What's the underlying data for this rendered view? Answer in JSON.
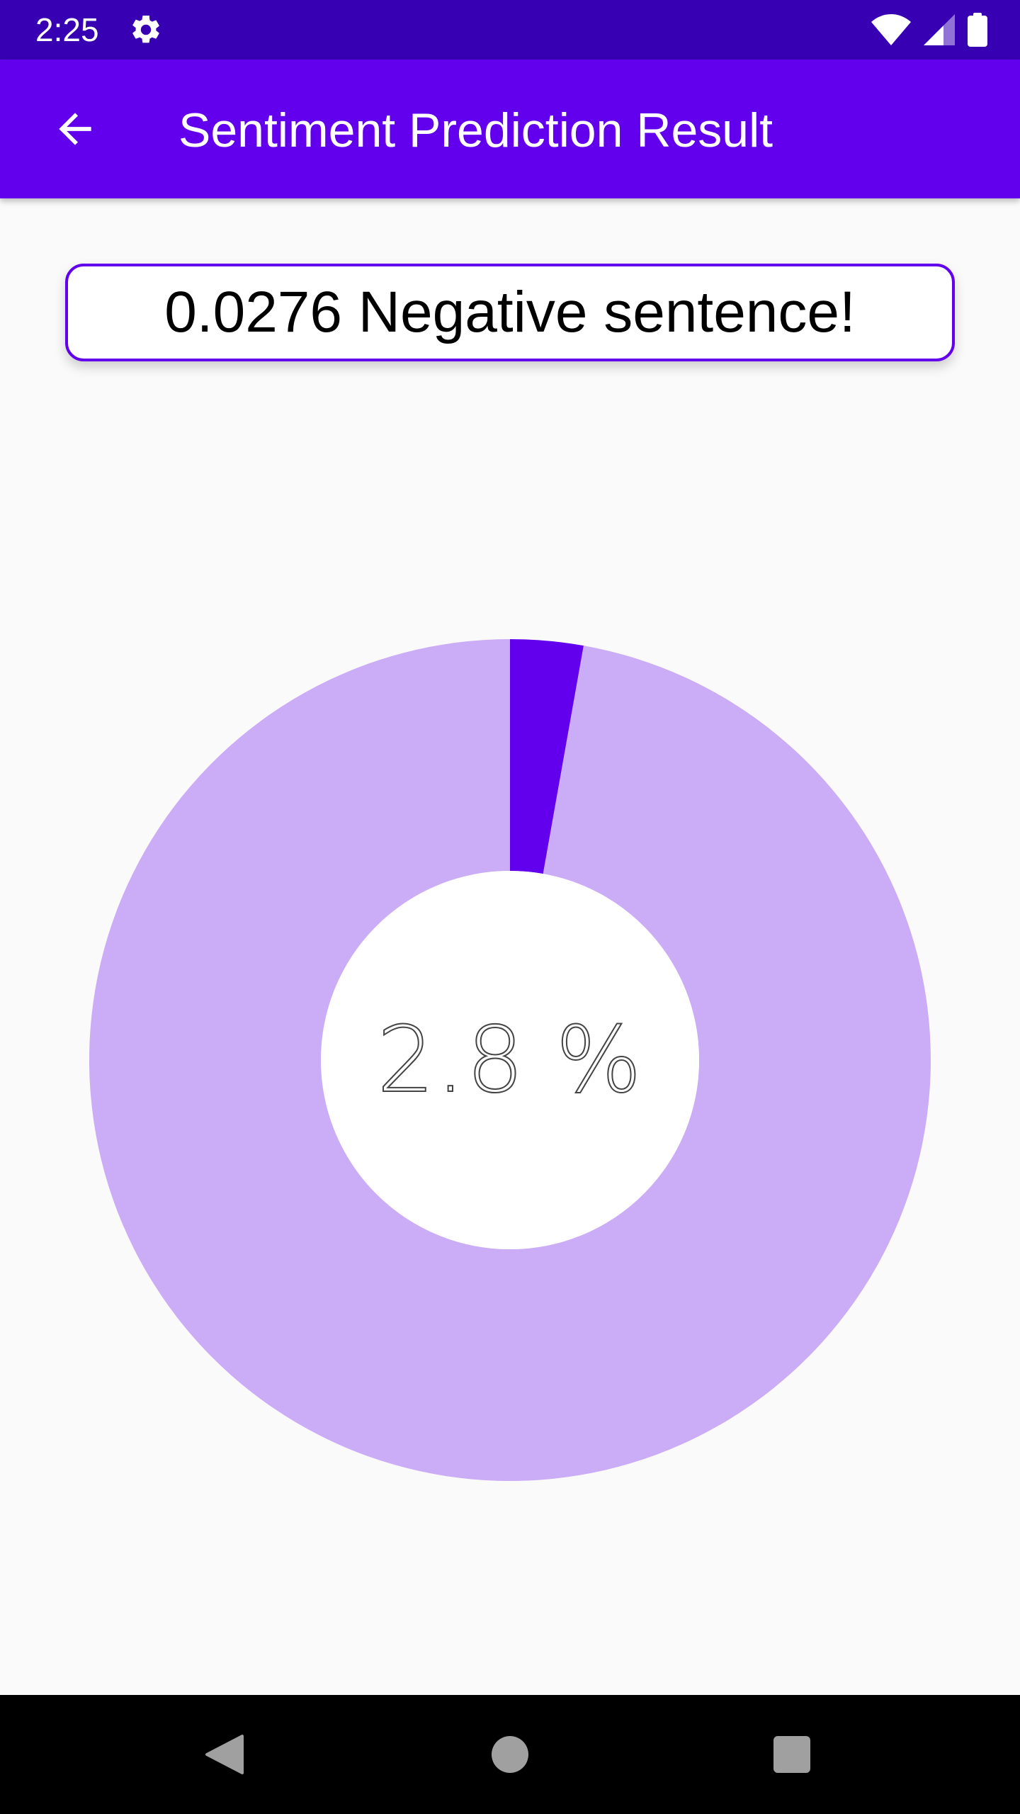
{
  "status_bar": {
    "time": "2:25",
    "icons": [
      "gear-icon",
      "wifi-icon",
      "signal-icon",
      "battery-icon"
    ]
  },
  "app_bar": {
    "back_icon": "arrow-back-icon",
    "title": "Sentiment Prediction Result"
  },
  "result": {
    "text": "0.0276  Negative sentence!"
  },
  "chart_data": {
    "type": "pie",
    "donut": true,
    "slices": [
      {
        "value": 2.8,
        "color": "#6200ee"
      },
      {
        "value": 97.2,
        "color": "#cbacf6"
      }
    ],
    "center_label": "2.8 %"
  },
  "colors": {
    "primary": "#6200ee",
    "primary_dark": "#3700b3",
    "slice_light": "#cbacf6"
  },
  "nav_bar": {
    "icons": [
      "nav-back-icon",
      "nav-home-icon",
      "nav-recents-icon"
    ]
  }
}
